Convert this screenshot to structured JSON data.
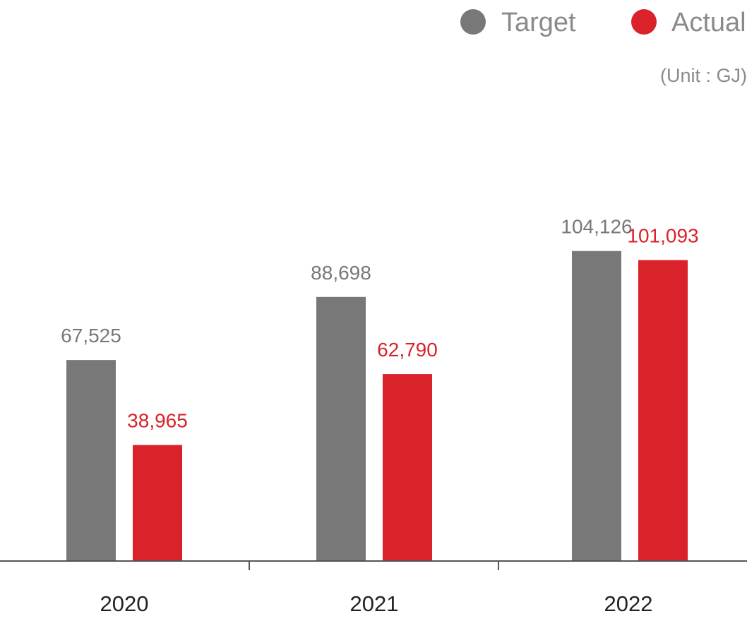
{
  "chart_data": {
    "type": "bar",
    "title": "",
    "xlabel": "",
    "ylabel": "",
    "unit_label": "(Unit : GJ)",
    "categories": [
      "2020",
      "2021",
      "2022"
    ],
    "series": [
      {
        "name": "Target",
        "color": "#787878",
        "label_color": "#787878",
        "values": [
          67525,
          88698,
          104126
        ],
        "labels": [
          "67,525",
          "88,698",
          "104,126"
        ]
      },
      {
        "name": "Actual",
        "color": "#d9222a",
        "label_color": "#d9222a",
        "values": [
          38965,
          62790,
          101093
        ],
        "labels": [
          "38,965",
          "62,790",
          "101,093"
        ]
      }
    ],
    "ylim": [
      0,
      160000
    ],
    "grid": false,
    "legend": "top-right",
    "axis_color": "#555555",
    "category_label_color": "#222222"
  }
}
